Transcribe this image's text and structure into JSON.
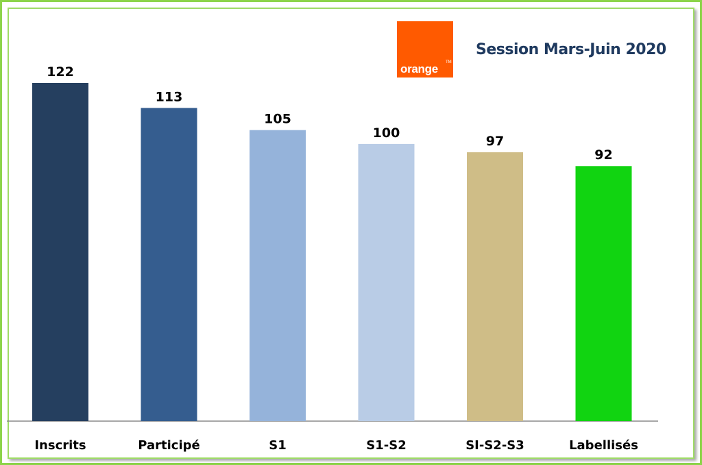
{
  "logo": {
    "text": "orange",
    "tm": "TM",
    "color": "#ff5a00"
  },
  "title": "Session Mars-Juin 2020",
  "chart_data": {
    "type": "bar",
    "categories": [
      "Inscrits",
      "Participé",
      "S1",
      "S1-S2",
      "SI-S2-S3",
      "Labellisés"
    ],
    "values": [
      122,
      113,
      105,
      100,
      97,
      92
    ],
    "colors": [
      "#253f5f",
      "#355d8f",
      "#95b3da",
      "#b9cce6",
      "#cfbd87",
      "#11d411"
    ],
    "data_labels": true,
    "grid": false,
    "legend": "none",
    "xlabel": "",
    "ylabel": "",
    "ylim": [
      0,
      122
    ]
  }
}
